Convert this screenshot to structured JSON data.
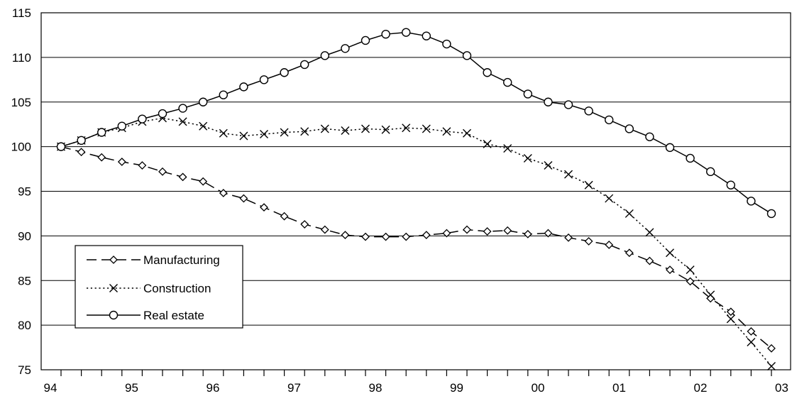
{
  "chart_data": {
    "type": "line",
    "title": "",
    "xlabel": "",
    "ylabel": "",
    "ylim": [
      75,
      115
    ],
    "y_ticks": [
      75,
      80,
      85,
      90,
      95,
      100,
      105,
      110,
      115
    ],
    "x_tick_labels": [
      "94",
      "95",
      "96",
      "97",
      "98",
      "99",
      "00",
      "01",
      "02",
      "03"
    ],
    "grid": "horizontal",
    "legend_position": "bottom-left",
    "series": [
      {
        "name": "Manufacturing",
        "line_style": "long-dash",
        "marker": "diamond",
        "color": "#000000",
        "values": [
          100.0,
          99.4,
          98.8,
          98.3,
          97.9,
          97.2,
          96.6,
          96.1,
          94.8,
          94.2,
          93.2,
          92.2,
          91.3,
          90.7,
          90.1,
          89.9,
          89.9,
          89.9,
          90.1,
          90.3,
          90.7,
          90.5,
          90.6,
          90.2,
          90.3,
          89.8,
          89.4,
          89.0,
          88.1,
          87.2,
          86.2,
          84.9,
          83.0,
          81.5,
          79.3,
          77.4
        ]
      },
      {
        "name": "Construction",
        "line_style": "dotted",
        "marker": "x",
        "color": "#000000",
        "values": [
          100.0,
          100.7,
          101.6,
          102.1,
          102.8,
          103.2,
          102.8,
          102.3,
          101.5,
          101.2,
          101.4,
          101.6,
          101.7,
          102.0,
          101.8,
          102.0,
          101.9,
          102.1,
          102.0,
          101.7,
          101.5,
          100.3,
          99.8,
          98.7,
          97.9,
          96.9,
          95.7,
          94.2,
          92.5,
          90.4,
          88.1,
          86.2,
          83.4,
          80.7,
          78.1,
          75.4
        ]
      },
      {
        "name": "Real estate",
        "line_style": "solid",
        "marker": "circle",
        "color": "#000000",
        "values": [
          100.0,
          100.7,
          101.6,
          102.3,
          103.1,
          103.7,
          104.3,
          105.0,
          105.8,
          106.7,
          107.5,
          108.3,
          109.2,
          110.2,
          111.0,
          111.9,
          112.6,
          112.8,
          112.4,
          111.5,
          110.2,
          108.3,
          107.2,
          105.9,
          105.0,
          104.7,
          104.0,
          103.0,
          102.0,
          101.1,
          99.9,
          98.7,
          97.2,
          95.7,
          93.9,
          92.5
        ]
      }
    ]
  }
}
